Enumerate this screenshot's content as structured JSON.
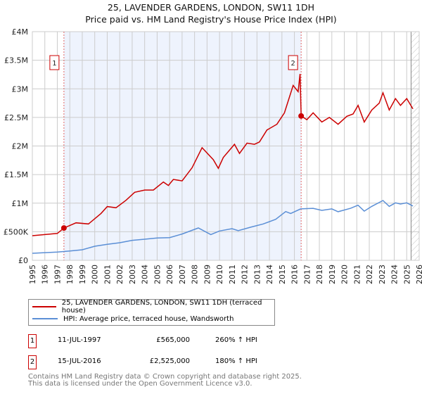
{
  "title_line1": "25, LAVENDER GARDENS, LONDON, SW11 1DH",
  "title_line2": "Price paid vs. HM Land Registry's House Price Index (HPI)",
  "chart_data": {
    "type": "line",
    "title": "25, LAVENDER GARDENS, LONDON, SW11 1DH — Price paid vs. HM Land Registry's House Price Index (HPI)",
    "xlim": [
      1995,
      2026
    ],
    "ylim": [
      0,
      4000000
    ],
    "x_ticks": [
      1995,
      1996,
      1997,
      1998,
      1999,
      2000,
      2001,
      2002,
      2003,
      2004,
      2005,
      2006,
      2007,
      2008,
      2009,
      2010,
      2011,
      2012,
      2013,
      2014,
      2015,
      2016,
      2017,
      2018,
      2019,
      2020,
      2021,
      2022,
      2023,
      2024,
      2025,
      2026
    ],
    "y_ticks": [
      {
        "v": 0,
        "label": "£0"
      },
      {
        "v": 500000,
        "label": "£500K"
      },
      {
        "v": 1000000,
        "label": "£1M"
      },
      {
        "v": 1500000,
        "label": "£1.5M"
      },
      {
        "v": 2000000,
        "label": "£2M"
      },
      {
        "v": 2500000,
        "label": "£2.5M"
      },
      {
        "v": 3000000,
        "label": "£3M"
      },
      {
        "v": 3500000,
        "label": "£3.5M"
      },
      {
        "v": 4000000,
        "label": "£4M"
      }
    ],
    "grid": true,
    "shaded_range": [
      1997.53,
      2016.54
    ],
    "hatched_from": 2025.35,
    "series": [
      {
        "name": "25, LAVENDER GARDENS, LONDON, SW11 1DH (terraced house)",
        "color": "#cc0000",
        "x": [
          1995,
          1996,
          1997,
          1997.53,
          1998.5,
          1999.5,
          2000.5,
          2001,
          2001.7,
          2002.5,
          2003.2,
          2004,
          2004.7,
          2005.5,
          2005.9,
          2006.3,
          2007,
          2007.8,
          2008.6,
          2009.5,
          2009.9,
          2010.3,
          2011.2,
          2011.6,
          2012.2,
          2012.8,
          2013.2,
          2013.8,
          2014.6,
          2015.2,
          2015.9,
          2016.3,
          2016.45,
          2016.54,
          2017,
          2017.5,
          2018.2,
          2018.8,
          2019.5,
          2020.2,
          2020.7,
          2021.1,
          2021.6,
          2022.2,
          2022.8,
          2023.1,
          2023.6,
          2024.1,
          2024.5,
          2025,
          2025.5
        ],
        "values": [
          431000,
          450000,
          470000,
          565000,
          656000,
          636000,
          820000,
          940000,
          920000,
          1050000,
          1190000,
          1230000,
          1230000,
          1370000,
          1310000,
          1415000,
          1390000,
          1620000,
          1970000,
          1760000,
          1610000,
          1800000,
          2030000,
          1870000,
          2050000,
          2030000,
          2070000,
          2280000,
          2380000,
          2580000,
          3060000,
          2950000,
          3260000,
          2525000,
          2460000,
          2580000,
          2420000,
          2500000,
          2380000,
          2520000,
          2560000,
          2710000,
          2420000,
          2630000,
          2750000,
          2930000,
          2630000,
          2830000,
          2710000,
          2830000,
          2650000
        ]
      },
      {
        "name": "HPI: Average price, terraced house, Wandsworth",
        "color": "#5b8fd6",
        "x": [
          1995,
          1997,
          1998,
          1999,
          2000,
          2001,
          2002,
          2003,
          2004,
          2005,
          2006,
          2007,
          2008.3,
          2009.3,
          2010,
          2011,
          2011.5,
          2012.5,
          2013.5,
          2014.5,
          2015.3,
          2015.7,
          2016.5,
          2017.5,
          2018.2,
          2019,
          2019.5,
          2020.5,
          2021.1,
          2021.6,
          2022.2,
          2023.1,
          2023.6,
          2024.1,
          2024.5,
          2025,
          2025.5
        ],
        "values": [
          123000,
          144000,
          164000,
          185000,
          246000,
          279000,
          308000,
          349000,
          369000,
          390000,
          398000,
          460000,
          566000,
          451000,
          513000,
          554000,
          520000,
          580000,
          636000,
          718000,
          853000,
          820000,
          900000,
          910000,
          874000,
          900000,
          850000,
          910000,
          964000,
          860000,
          944000,
          1046000,
          944000,
          1005000,
          985000,
          1005000,
          950000
        ]
      }
    ],
    "annotations": [
      {
        "label": "1",
        "x": 1997.53,
        "y": 565000
      },
      {
        "label": "2",
        "x": 2016.54,
        "y": 2525000
      }
    ]
  },
  "legend": {
    "red_label": "25, LAVENDER GARDENS, LONDON, SW11 1DH (terraced house)",
    "blue_label": "HPI: Average price, terraced house, Wandsworth"
  },
  "sales": [
    {
      "num": "1",
      "date": "11-JUL-1997",
      "price": "£565,000",
      "hpi": "260% ↑ HPI"
    },
    {
      "num": "2",
      "date": "15-JUL-2016",
      "price": "£2,525,000",
      "hpi": "180% ↑ HPI"
    }
  ],
  "footer_line1": "Contains HM Land Registry data © Crown copyright and database right 2025.",
  "footer_line2": "This data is licensed under the Open Government Licence v3.0."
}
